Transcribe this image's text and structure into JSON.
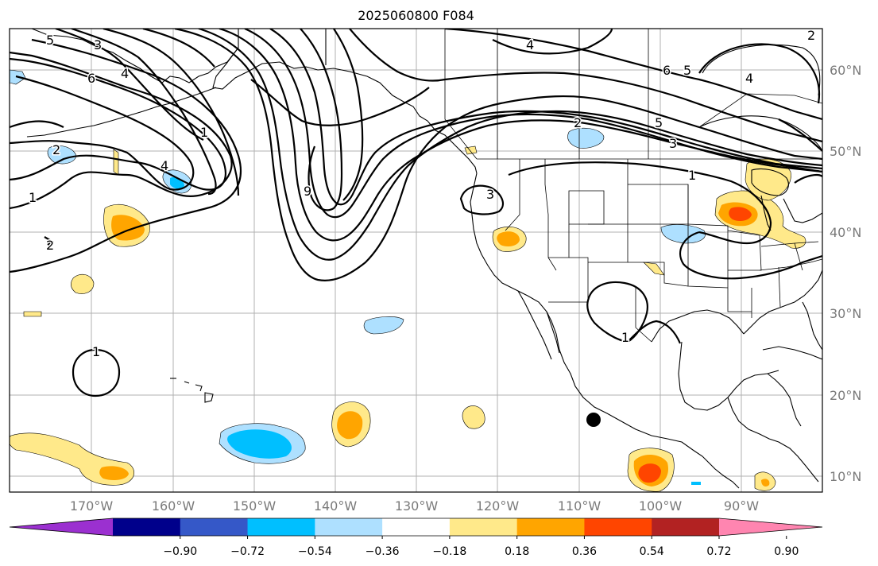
{
  "title": "2025060800 F084",
  "lat_labels": [
    "60°N",
    "50°N",
    "40°N",
    "30°N",
    "20°N",
    "10°N"
  ],
  "lon_labels": [
    "170°W",
    "160°W",
    "150°W",
    "140°W",
    "130°W",
    "120°W",
    "110°W",
    "100°W",
    "90°W"
  ],
  "colorbar": {
    "ticks": [
      "−0.90",
      "−0.72",
      "−0.54",
      "−0.36",
      "−0.18",
      "0.18",
      "0.36",
      "0.54",
      "0.72",
      "0.90"
    ],
    "colors": [
      "#9b30d0",
      "#00008b",
      "#3558c8",
      "#00bfff",
      "#aee0ff",
      "#ffffff",
      "#ffe98a",
      "#ffa500",
      "#ff4500",
      "#b22222",
      "#ff85b0"
    ]
  },
  "contour_labels": [
    "5",
    "3",
    "6",
    "4",
    "1",
    "2",
    "4",
    "1",
    "2",
    "9",
    "3",
    "4",
    "2",
    "5",
    "3",
    "6",
    "5",
    "4",
    "1",
    "1",
    "1",
    "2"
  ],
  "marker": "black-dot"
}
